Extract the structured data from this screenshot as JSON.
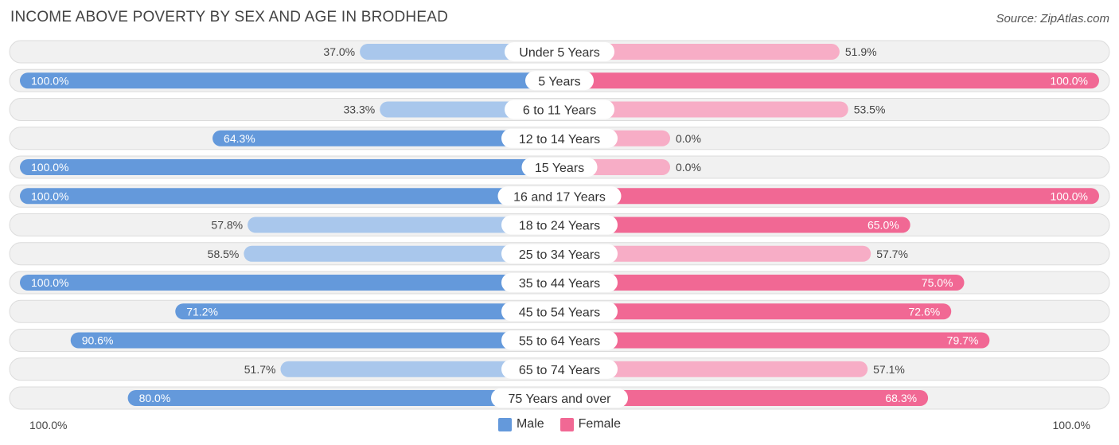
{
  "header": {
    "title": "INCOME ABOVE POVERTY BY SEX AND AGE IN BRODHEAD",
    "source": "Source: ZipAtlas.com"
  },
  "legend": {
    "male_label": "Male",
    "female_label": "Female"
  },
  "axis": {
    "left_label": "100.0%",
    "right_label": "100.0%"
  },
  "colors": {
    "male_strong": "#6499db",
    "male_light": "#a9c7ec",
    "female_strong": "#f16894",
    "female_light": "#f7adc6",
    "row_bg": "#f1f1f1",
    "row_border": "#dcdcdc"
  },
  "chart_data": {
    "type": "bar",
    "orientation": "horizontal-diverging",
    "title": "INCOME ABOVE POVERTY BY SEX AND AGE IN BRODHEAD",
    "xlim": [
      -100,
      100
    ],
    "categories": [
      "Under 5 Years",
      "5 Years",
      "6 to 11 Years",
      "12 to 14 Years",
      "15 Years",
      "16 and 17 Years",
      "18 to 24 Years",
      "25 to 34 Years",
      "35 to 44 Years",
      "45 to 54 Years",
      "55 to 64 Years",
      "65 to 74 Years",
      "75 Years and over"
    ],
    "series": [
      {
        "name": "Male",
        "values": [
          37.0,
          100.0,
          33.3,
          64.3,
          100.0,
          100.0,
          57.8,
          58.5,
          100.0,
          71.2,
          90.6,
          51.7,
          80.0
        ],
        "labels": [
          "37.0%",
          "100.0%",
          "33.3%",
          "64.3%",
          "100.0%",
          "100.0%",
          "57.8%",
          "58.5%",
          "100.0%",
          "71.2%",
          "90.6%",
          "51.7%",
          "80.0%"
        ]
      },
      {
        "name": "Female",
        "values": [
          51.9,
          100.0,
          53.5,
          0.0,
          0.0,
          100.0,
          65.0,
          57.7,
          75.0,
          72.6,
          79.7,
          57.1,
          68.3
        ],
        "labels": [
          "51.9%",
          "100.0%",
          "53.5%",
          "0.0%",
          "0.0%",
          "100.0%",
          "65.0%",
          "57.7%",
          "75.0%",
          "72.6%",
          "79.7%",
          "57.1%",
          "68.3%"
        ]
      }
    ],
    "legend_position": "bottom-center"
  }
}
